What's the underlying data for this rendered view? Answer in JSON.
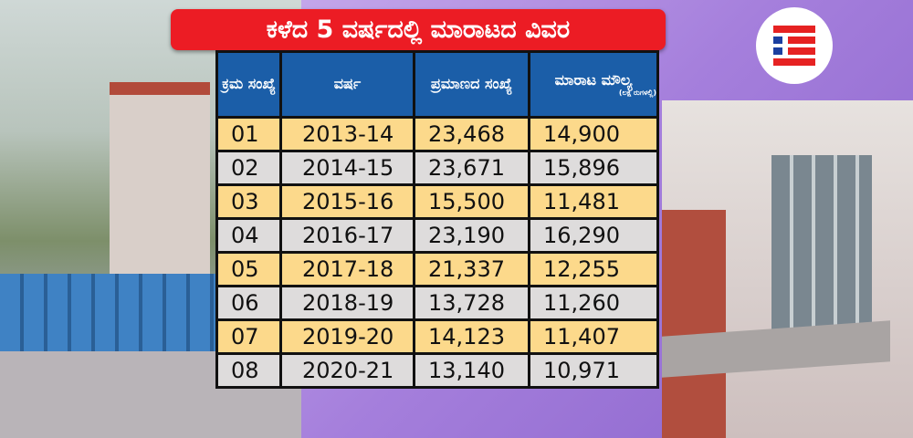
{
  "title": "ಕಳೆದ 5 ವರ್ಷದಲ್ಲಿ ಮಾರಾಟದ ವಿವರ",
  "headers": {
    "serial": "ಕ್ರಮ ಸಂಖ್ಯೆ",
    "year": "ವರ್ಷ",
    "quantity": "ಪ್ರಮಾಣದ ಸಂಖ್ಯೆ",
    "value": "ಮಾರಾಟ ಮೌಲ್ಯ",
    "value_unit": "(ಲಕ್ಷ ರುಗಳಲ್ಲಿ)"
  },
  "rows": [
    {
      "no": "01",
      "year": "2013-14",
      "qty": "23,468",
      "value": "14,900"
    },
    {
      "no": "02",
      "year": "2014-15",
      "qty": "23,671",
      "value": "15,896"
    },
    {
      "no": "03",
      "year": "2015-16",
      "qty": "15,500",
      "value": "11,481"
    },
    {
      "no": "04",
      "year": "2016-17",
      "qty": "23,190",
      "value": "16,290"
    },
    {
      "no": "05",
      "year": "2017-18",
      "qty": "21,337",
      "value": "12,255"
    },
    {
      "no": "06",
      "year": "2018-19",
      "qty": "13,728",
      "value": "11,260"
    },
    {
      "no": "07",
      "year": "2019-20",
      "qty": "14,123",
      "value": "11,407"
    },
    {
      "no": "08",
      "year": "2020-21",
      "qty": "13,140",
      "value": "10,971"
    }
  ],
  "colors": {
    "title_bg": "#ec1c24",
    "header_bg": "#1b5ea8",
    "row_odd": "#fcd98b",
    "row_even": "#dedcdc"
  }
}
